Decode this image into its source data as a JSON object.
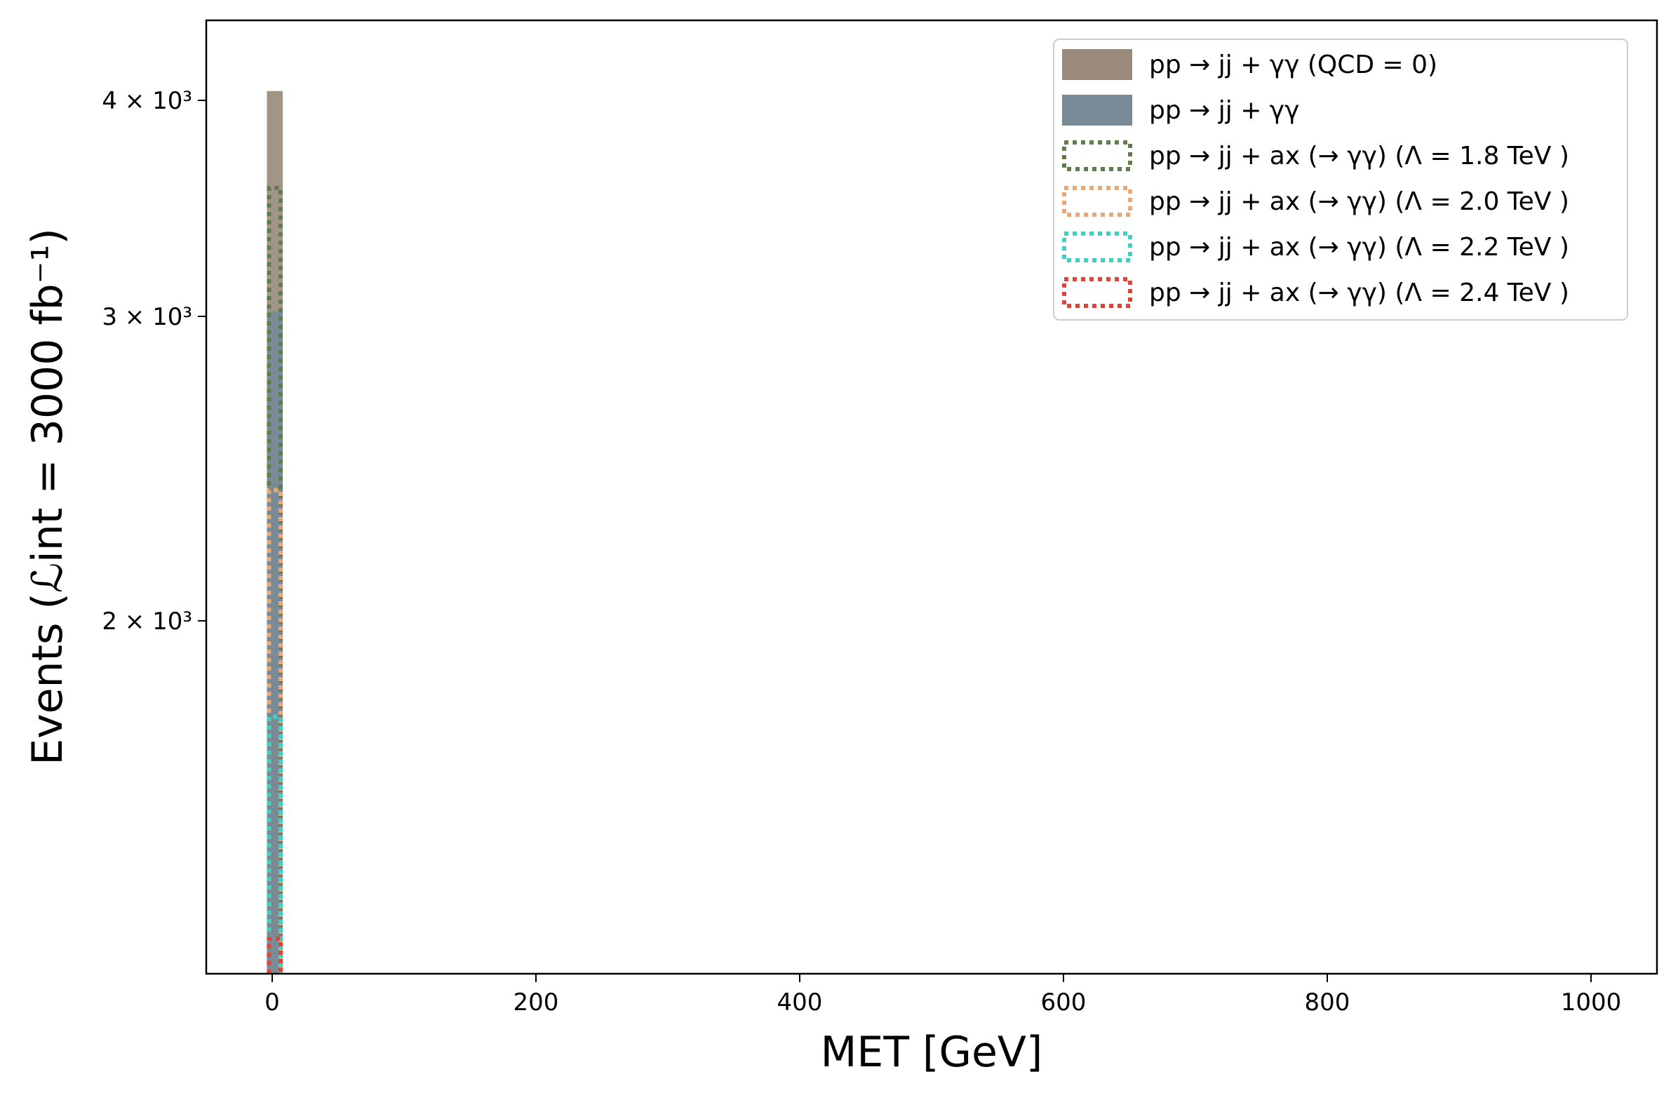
{
  "chart_data": {
    "type": "bar",
    "xlabel": "MET [GeV]",
    "ylabel": "Events (ℒint = 3000 fb⁻¹)",
    "xlim": [
      -50,
      1050
    ],
    "ylim": [
      1250,
      4450
    ],
    "y_scale": "log",
    "x_ticks": [
      {
        "value": 0,
        "label": "0"
      },
      {
        "value": 200,
        "label": "200"
      },
      {
        "value": 400,
        "label": "400"
      },
      {
        "value": 600,
        "label": "600"
      },
      {
        "value": 800,
        "label": "800"
      },
      {
        "value": 1000,
        "label": "1000"
      }
    ],
    "y_ticks": [
      {
        "value": 2000,
        "label": "2 × 10³"
      },
      {
        "value": 3000,
        "label": "3 × 10³"
      },
      {
        "value": 4000,
        "label": "4 × 10³"
      }
    ],
    "grid": false,
    "legend_position": "top-right",
    "bin": [
      -4,
      8
    ],
    "series": [
      {
        "name": "pp → jj + γγ (QCD = 0)",
        "value": 4050,
        "style": "filled",
        "color": "#9a8b7d"
      },
      {
        "name": "pp → jj + γγ",
        "value": 3020,
        "style": "filled",
        "color": "#778a96"
      },
      {
        "name": "pp → jj + ax (→ γγ) (Λ = 1.8 TeV )",
        "value": 3560,
        "style": "dotted",
        "color": "#5e7d4a"
      },
      {
        "name": "pp → jj + ax (→ γγ) (Λ = 2.0 TeV )",
        "value": 2380,
        "style": "dotted",
        "color": "#e8a878"
      },
      {
        "name": "pp → jj + ax (→ γγ) (Λ = 2.2 TeV )",
        "value": 1760,
        "style": "dotted",
        "color": "#40d0c0"
      },
      {
        "name": "pp → jj + ax (→ γγ) (Λ = 2.4 TeV )",
        "value": 1310,
        "style": "dotted",
        "color": "#e04438"
      }
    ]
  }
}
